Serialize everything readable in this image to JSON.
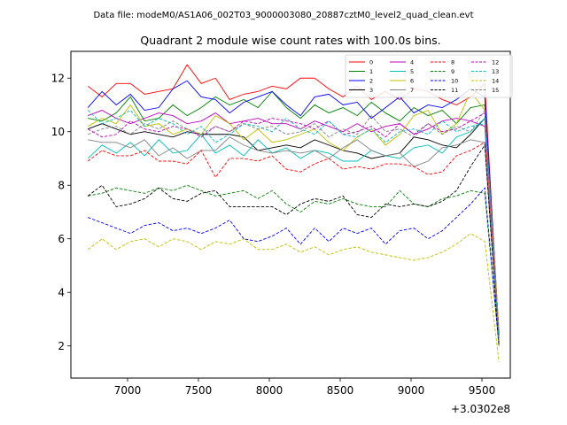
{
  "chart_data": {
    "type": "line",
    "suptitle": "Data file: modeM0/AS1A06_002T03_9000003080_20887cztM0_level2_quad_clean.evt",
    "title": "Quadrant 2 module wise count rates with 100.0s bins.",
    "xlabel": "",
    "ylabel": "",
    "x_offset_label": "+3.0302e8",
    "xlim": [
      6600,
      9700
    ],
    "ylim": [
      0.8,
      13.0
    ],
    "xticks": [
      7000,
      7500,
      8000,
      8500,
      9000,
      9500
    ],
    "yticks": [
      2,
      4,
      6,
      8,
      10,
      12
    ],
    "grid": false,
    "legend": {
      "placement": "top-right",
      "columns": 4
    },
    "x": [
      6720,
      6820,
      6920,
      7020,
      7120,
      7220,
      7320,
      7420,
      7520,
      7620,
      7720,
      7820,
      7920,
      8020,
      8120,
      8220,
      8320,
      8420,
      8520,
      8620,
      8720,
      8820,
      8920,
      9020,
      9120,
      9220,
      9320,
      9420,
      9520,
      9620
    ],
    "series": [
      {
        "name": "0",
        "color": "#ff0000",
        "dash": "solid",
        "values": [
          11.7,
          11.3,
          11.8,
          11.8,
          11.4,
          11.5,
          11.6,
          12.5,
          11.8,
          12.0,
          11.2,
          11.4,
          11.5,
          11.7,
          11.6,
          12.0,
          12.0,
          11.6,
          11.3,
          11.7,
          11.2,
          11.5,
          11.2,
          11.6,
          11.5,
          11.2,
          11.0,
          11.3,
          11.8,
          2.3
        ]
      },
      {
        "name": "1",
        "color": "#008000",
        "dash": "solid",
        "values": [
          10.5,
          10.4,
          10.7,
          11.3,
          10.4,
          10.5,
          11.0,
          10.6,
          10.9,
          11.3,
          11.0,
          11.2,
          10.9,
          11.5,
          10.9,
          10.5,
          11.0,
          10.7,
          10.9,
          10.6,
          11.1,
          10.7,
          10.4,
          10.9,
          10.6,
          10.8,
          10.3,
          10.9,
          11.0,
          2.4
        ]
      },
      {
        "name": "2",
        "color": "#0000ff",
        "dash": "solid",
        "values": [
          10.9,
          11.5,
          11.0,
          11.4,
          10.8,
          10.9,
          11.6,
          11.9,
          11.3,
          11.2,
          10.7,
          11.1,
          11.3,
          11.5,
          11.0,
          10.6,
          11.3,
          11.4,
          11.0,
          11.1,
          10.5,
          10.9,
          11.3,
          10.7,
          11.0,
          10.9,
          11.2,
          11.6,
          11.3,
          2.5
        ]
      },
      {
        "name": "3",
        "color": "#000000",
        "dash": "solid",
        "values": [
          10.1,
          10.3,
          10.1,
          9.9,
          10.0,
          9.9,
          9.8,
          10.0,
          9.9,
          9.9,
          9.9,
          9.8,
          9.3,
          9.4,
          9.5,
          9.4,
          9.7,
          9.5,
          9.3,
          9.2,
          9.0,
          9.1,
          9.2,
          9.8,
          9.7,
          9.5,
          9.4,
          9.9,
          10.5,
          2.4
        ]
      },
      {
        "name": "4",
        "color": "#bf00bf",
        "dash": "solid",
        "values": [
          10.6,
          10.8,
          10.5,
          10.3,
          10.5,
          10.7,
          10.6,
          10.3,
          10.4,
          10.7,
          10.3,
          10.4,
          10.5,
          10.3,
          10.3,
          10.1,
          10.4,
          10.2,
          10.0,
          10.3,
          10.0,
          10.2,
          10.3,
          9.9,
          10.1,
          10.4,
          10.5,
          10.4,
          10.2,
          2.4
        ]
      },
      {
        "name": "5",
        "color": "#00bfbf",
        "dash": "solid",
        "values": [
          9.0,
          9.5,
          9.2,
          9.6,
          9.1,
          9.7,
          9.2,
          9.3,
          9.9,
          9.2,
          9.5,
          9.1,
          9.7,
          9.2,
          9.4,
          9.0,
          9.3,
          9.2,
          8.9,
          8.9,
          9.3,
          9.1,
          9.0,
          9.4,
          9.5,
          9.2,
          9.8,
          10.0,
          10.5,
          2.3
        ]
      },
      {
        "name": "6",
        "color": "#bfbf00",
        "dash": "solid",
        "values": [
          10.2,
          10.5,
          10.3,
          11.0,
          10.2,
          10.3,
          9.9,
          10.1,
          9.9,
          10.6,
          10.3,
          9.7,
          10.1,
          9.6,
          9.7,
          9.9,
          10.1,
          9.6,
          9.3,
          9.8,
          10.1,
          9.5,
          9.9,
          10.6,
          10.8,
          9.9,
          10.3,
          11.5,
          10.8,
          2.6
        ]
      },
      {
        "name": "7",
        "color": "#808080",
        "dash": "solid",
        "values": [
          9.7,
          9.6,
          9.6,
          9.4,
          9.7,
          9.1,
          9.4,
          9.0,
          9.3,
          9.3,
          9.8,
          9.5,
          9.3,
          9.2,
          9.3,
          9.2,
          9.3,
          9.0,
          9.4,
          9.7,
          9.3,
          9.1,
          9.2,
          8.7,
          8.9,
          9.4,
          9.5,
          9.7,
          9.6,
          2.2
        ]
      },
      {
        "name": "8",
        "color": "#ff0000",
        "dash": "dashed",
        "values": [
          8.9,
          9.3,
          9.1,
          9.1,
          9.3,
          8.9,
          8.9,
          8.8,
          9.3,
          8.3,
          9.0,
          9.0,
          8.9,
          9.1,
          8.6,
          8.5,
          8.8,
          9.0,
          8.6,
          8.7,
          8.6,
          8.8,
          8.8,
          8.7,
          8.4,
          8.5,
          9.1,
          9.3,
          9.6,
          2.1
        ]
      },
      {
        "name": "9",
        "color": "#008000",
        "dash": "dashed",
        "values": [
          7.6,
          7.7,
          7.9,
          7.8,
          7.7,
          7.9,
          7.8,
          8.0,
          7.8,
          7.6,
          7.7,
          7.8,
          7.5,
          7.8,
          7.3,
          7.0,
          7.4,
          7.3,
          7.5,
          7.3,
          7.2,
          7.2,
          7.8,
          7.3,
          7.2,
          7.5,
          7.6,
          7.8,
          7.7,
          2.0
        ]
      },
      {
        "name": "10",
        "color": "#0000ff",
        "dash": "dashed",
        "values": [
          6.8,
          6.6,
          6.4,
          6.2,
          6.5,
          6.6,
          6.3,
          6.4,
          6.2,
          6.4,
          6.7,
          6.0,
          5.9,
          6.1,
          6.4,
          5.8,
          6.4,
          5.9,
          6.4,
          6.2,
          6.4,
          5.8,
          6.3,
          6.4,
          6.0,
          6.3,
          6.8,
          7.3,
          7.9,
          2.0
        ]
      },
      {
        "name": "11",
        "color": "#000000",
        "dash": "dashed",
        "values": [
          7.6,
          8.0,
          7.2,
          7.3,
          7.5,
          7.9,
          7.5,
          7.4,
          7.7,
          7.8,
          7.2,
          7.2,
          7.2,
          7.2,
          6.9,
          7.3,
          7.5,
          7.4,
          7.6,
          6.9,
          6.8,
          7.3,
          7.2,
          7.3,
          7.2,
          7.4,
          7.8,
          8.7,
          9.5,
          2.0
        ]
      },
      {
        "name": "12",
        "color": "#bf00bf",
        "dash": "dashed",
        "values": [
          10.1,
          9.8,
          9.9,
          10.4,
          10.1,
          10.0,
          10.2,
          10.1,
          9.8,
          10.2,
          10.0,
          10.4,
          10.3,
          10.5,
          10.4,
          10.3,
          10.1,
          10.4,
          9.9,
          10.0,
          10.2,
          9.8,
          10.3,
          9.9,
          10.3,
          10.0,
          10.1,
          10.4,
          10.7,
          2.4
        ]
      },
      {
        "name": "13",
        "color": "#00bfbf",
        "dash": "dashed",
        "values": [
          10.8,
          10.3,
          10.5,
          10.8,
          10.2,
          10.5,
          10.3,
          9.9,
          10.2,
          9.6,
          9.9,
          10.3,
          10.2,
          10.0,
          10.5,
          10.1,
          9.9,
          10.4,
          9.9,
          9.8,
          10.1,
          9.6,
          10.0,
          10.1,
          9.9,
          10.4,
          10.0,
          10.2,
          10.3,
          2.2
        ]
      },
      {
        "name": "14",
        "color": "#bfbf00",
        "dash": "dashed",
        "values": [
          5.6,
          6.0,
          5.6,
          5.9,
          6.0,
          5.7,
          6.0,
          5.9,
          5.6,
          5.9,
          5.8,
          6.0,
          5.6,
          5.6,
          5.8,
          5.5,
          5.7,
          5.4,
          5.6,
          5.7,
          5.5,
          5.4,
          5.3,
          5.2,
          5.3,
          5.5,
          5.8,
          6.2,
          5.9,
          1.4
        ]
      },
      {
        "name": "15",
        "color": "#808080",
        "dash": "dashed",
        "values": [
          9.9,
          10.1,
          10.2,
          9.9,
          10.3,
          10.1,
          10.4,
          10.1,
          9.9,
          10.2,
          10.0,
          10.3,
          10.1,
          10.2,
          9.9,
          10.0,
          10.3,
          9.8,
          10.1,
          9.9,
          10.6,
          10.0,
          10.1,
          9.8,
          10.3,
          9.9,
          10.2,
          10.0,
          10.8,
          2.2
        ]
      }
    ]
  }
}
